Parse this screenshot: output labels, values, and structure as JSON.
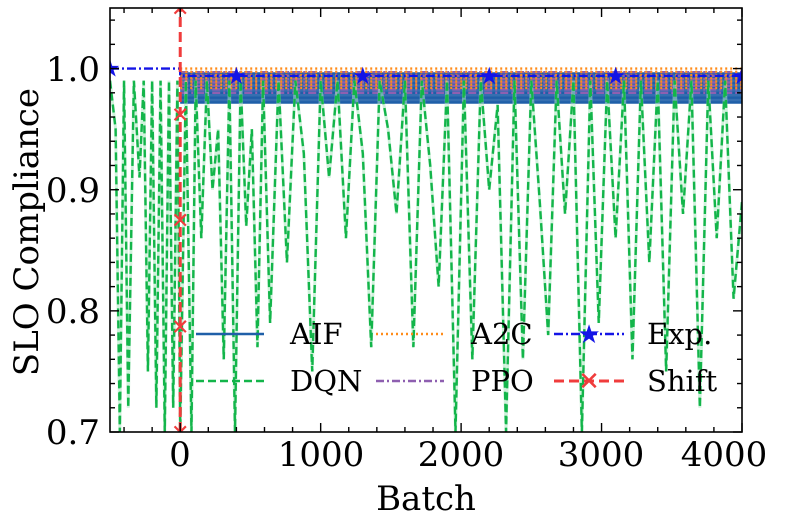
{
  "chart_data": {
    "type": "line",
    "xlabel": "Batch",
    "ylabel": "SLO Compliance",
    "xlim": [
      -500,
      4000
    ],
    "ylim": [
      0.7,
      1.05
    ],
    "xticks": [
      0,
      1000,
      2000,
      3000,
      4000
    ],
    "xtick_labels": [
      "0",
      "1000",
      "2000",
      "3000",
      "4000"
    ],
    "yticks": [
      0.7,
      0.8,
      0.9,
      1.0
    ],
    "ytick_labels": [
      "0.7",
      "0.8",
      "0.9",
      "1.0"
    ],
    "legend_position": "bottom",
    "legend_columns": 3,
    "series": [
      {
        "name": "AIF",
        "color": "#1f5fa8",
        "style": "solid",
        "band": [
          0.972,
          0.996
        ],
        "start": 0
      },
      {
        "name": "DQN",
        "color": "#13b54a",
        "style": "dashed",
        "x": [
          -500,
          -460,
          -430,
          -400,
          -370,
          -330,
          -290,
          -260,
          -230,
          -200,
          -170,
          -140,
          -110,
          -80,
          -50,
          -20,
          0,
          40,
          80,
          110,
          150,
          190,
          230,
          270,
          310,
          350,
          390,
          430,
          470,
          510,
          550,
          590,
          640,
          700,
          760,
          820,
          880,
          940,
          1000,
          1060,
          1120,
          1180,
          1240,
          1300,
          1360,
          1420,
          1480,
          1540,
          1600,
          1660,
          1720,
          1780,
          1840,
          1900,
          1960,
          2020,
          2080,
          2140,
          2200,
          2260,
          2320,
          2380,
          2440,
          2500,
          2560,
          2620,
          2680,
          2740,
          2800,
          2860,
          2920,
          2980,
          3040,
          3100,
          3160,
          3220,
          3280,
          3340,
          3400,
          3460,
          3520,
          3580,
          3640,
          3700,
          3760,
          3820,
          3880,
          3940,
          4000
        ],
        "values": [
          0.99,
          0.95,
          0.7,
          0.99,
          0.72,
          0.99,
          0.91,
          0.99,
          0.75,
          0.99,
          0.72,
          0.99,
          0.7,
          0.99,
          0.72,
          0.99,
          0.7,
          0.99,
          0.7,
          0.99,
          0.86,
          0.99,
          0.9,
          0.95,
          0.76,
          0.99,
          0.7,
          0.99,
          0.87,
          0.95,
          0.77,
          0.99,
          0.79,
          0.99,
          0.84,
          0.99,
          0.93,
          0.75,
          0.99,
          0.91,
          0.99,
          0.86,
          0.99,
          0.93,
          0.77,
          0.99,
          0.95,
          0.88,
          0.99,
          0.77,
          0.99,
          0.92,
          0.82,
          0.99,
          0.7,
          0.99,
          0.76,
          0.99,
          0.9,
          0.97,
          0.7,
          0.99,
          0.76,
          0.99,
          0.89,
          0.78,
          0.99,
          0.88,
          0.99,
          0.7,
          0.99,
          0.79,
          0.99,
          0.86,
          0.99,
          0.76,
          0.99,
          0.84,
          0.99,
          0.75,
          0.99,
          0.88,
          0.99,
          0.72,
          0.99,
          0.86,
          0.99,
          0.81,
          0.89
        ]
      },
      {
        "name": "A2C",
        "color": "#ff8c1a",
        "style": "dotted",
        "band": [
          0.984,
          1.0
        ],
        "start": 0
      },
      {
        "name": "PPO",
        "color": "#8e5fb0",
        "style": "dashdot",
        "band": [
          0.98,
          0.997
        ],
        "start": 0
      },
      {
        "name": "Exp.",
        "color": "#1414e6",
        "style": "dashdot-star",
        "x": [
          -500,
          0,
          0,
          400,
          1300,
          2200,
          3100,
          4000
        ],
        "values": [
          1.0,
          1.0,
          0.994,
          0.994,
          0.994,
          0.994,
          0.994,
          0.994
        ],
        "markers_x": [
          -500,
          400,
          1300,
          2200,
          3100,
          4000
        ]
      },
      {
        "name": "Shift",
        "color": "#f03c3c",
        "style": "dashed-x",
        "x_position": 0,
        "markers_y": [
          0.962,
          0.875,
          0.787,
          0.7,
          1.05
        ]
      }
    ]
  }
}
